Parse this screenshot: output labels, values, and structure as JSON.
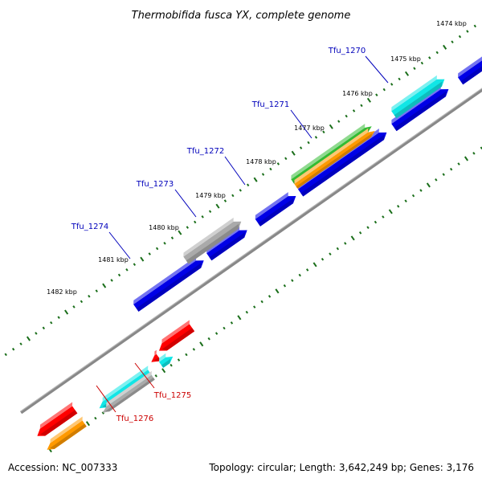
{
  "title": "Thermobifida fusca YX, complete genome",
  "footer": {
    "accession": "Accession: NC_007333",
    "summary": "Topology: circular; Length: 3,642,249 bp; Genes: 3,176"
  },
  "colors": {
    "backbone": "#888888",
    "tick": "#1a6e1a",
    "blue": "#0000e6",
    "cyan": "#11e6e6",
    "green": "#33bb33",
    "orange": "#ff9900",
    "gray": "#aaaaaa",
    "red": "#ff0000",
    "label_blue": "#0000bb",
    "label_red": "#cc0000"
  },
  "ticks": [
    "1474 kbp",
    "1475 kbp",
    "1476 kbp",
    "1477 kbp",
    "1478 kbp",
    "1479 kbp",
    "1480 kbp",
    "1481 kbp",
    "1482 kbp"
  ],
  "gene_labels": [
    {
      "name": "Tfu_1270",
      "color": "label_blue"
    },
    {
      "name": "Tfu_1271",
      "color": "label_blue"
    },
    {
      "name": "Tfu_1272",
      "color": "label_blue"
    },
    {
      "name": "Tfu_1273",
      "color": "label_blue"
    },
    {
      "name": "Tfu_1274",
      "color": "label_blue"
    },
    {
      "name": "Tfu_1275",
      "color": "label_red"
    },
    {
      "name": "Tfu_1276",
      "color": "label_red"
    }
  ]
}
